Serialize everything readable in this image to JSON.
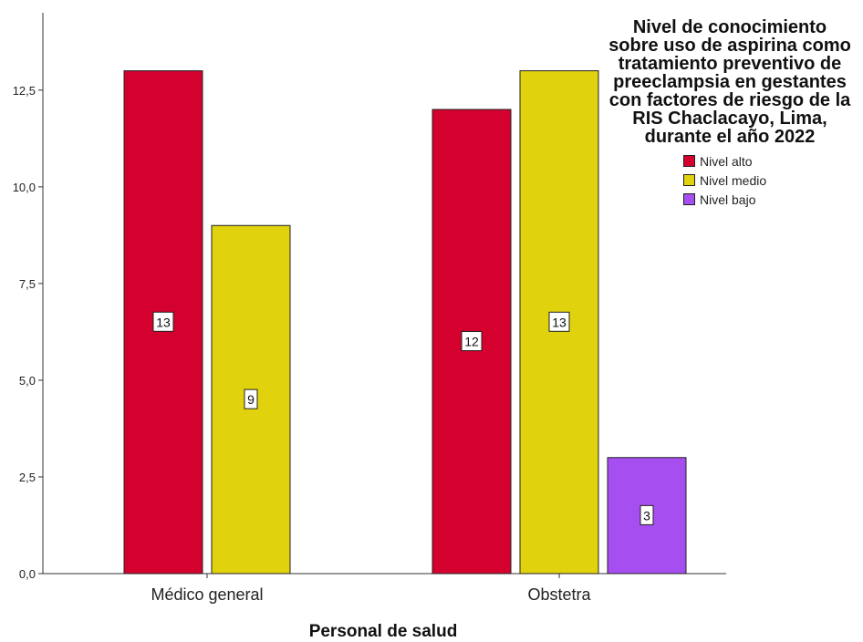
{
  "chart_data": {
    "type": "bar",
    "title": "Nivel de conocimiento sobre uso de aspirina como tratamiento preventivo de preeclampsia en gestantes con factores de riesgo de la RIS Chaclacayo, Lima, durante el año 2022",
    "title_lines": [
      "Nivel de conocimiento",
      "sobre uso de aspirina como",
      "tratamiento preventivo de",
      "preeclampsia en gestantes",
      "con factores de riesgo de la",
      "RIS Chaclacayo, Lima,",
      "durante el año 2022"
    ],
    "xlabel": "Personal de salud",
    "ylabel": "",
    "categories": [
      "Médico general",
      "Obstetra"
    ],
    "series": [
      {
        "name": "Nivel alto",
        "color": "#d4002d",
        "values": [
          13,
          12
        ]
      },
      {
        "name": "Nivel medio",
        "color": "#e1d20e",
        "values": [
          9,
          13
        ]
      },
      {
        "name": "Nivel bajo",
        "color": "#a64ef0",
        "values": [
          null,
          3
        ]
      }
    ],
    "data_labels": [
      [
        "13",
        "12"
      ],
      [
        "9",
        "13"
      ],
      [
        null,
        "3"
      ]
    ],
    "ylim": [
      0,
      14.5
    ],
    "yticks": [
      0,
      2.5,
      5,
      7.5,
      10,
      12.5
    ],
    "ytick_labels": [
      "0,0",
      "2,5",
      "5,0",
      "7,5",
      "10,0",
      "12,5"
    ],
    "grid": false,
    "legend_position": "top-right"
  }
}
